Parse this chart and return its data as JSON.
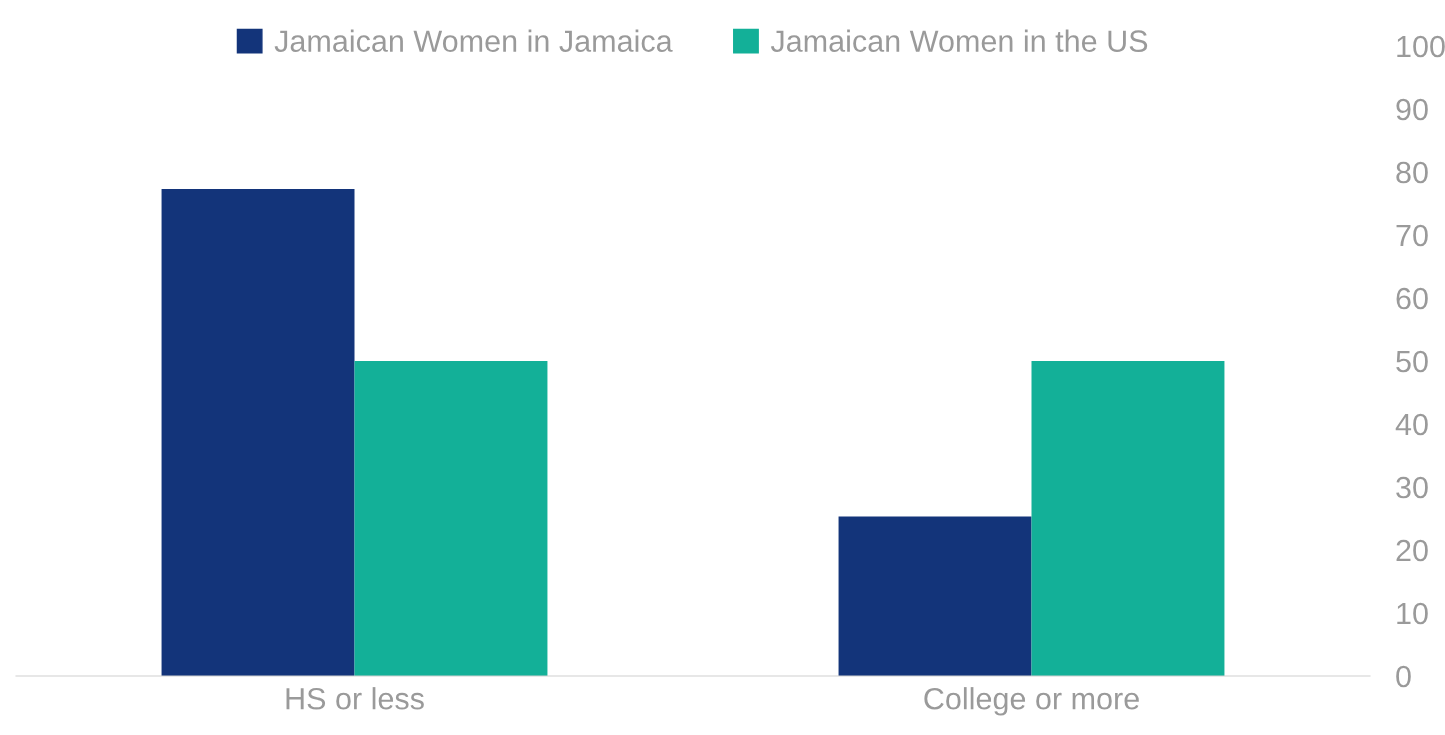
{
  "chart_data": {
    "type": "bar",
    "categories": [
      "HS or less",
      "College or more"
    ],
    "series": [
      {
        "name": "Jamaican Women in Jamaica",
        "color": "#13347a",
        "values": [
          77.3,
          25.3
        ]
      },
      {
        "name": "Jamaican Women in the US",
        "color": "#13b098",
        "values": [
          50,
          50
        ]
      }
    ],
    "ylim": [
      0,
      100
    ],
    "yticks": [
      0,
      10,
      20,
      30,
      40,
      50,
      60,
      70,
      80,
      90,
      100
    ],
    "grid": false,
    "legend": "top"
  }
}
